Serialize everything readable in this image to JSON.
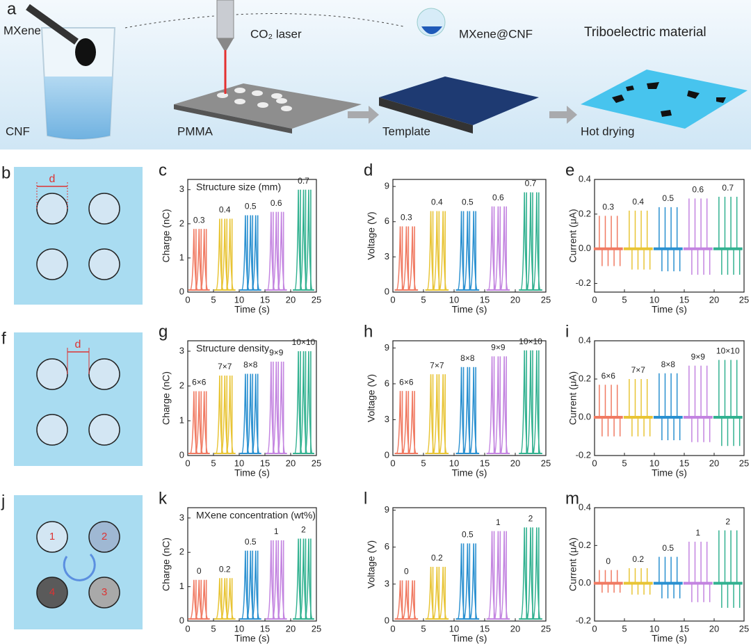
{
  "overview": {
    "panel": "a",
    "mxene": "MXene",
    "laser": "CO₂ laser",
    "composite": "MXene@CNF",
    "title": "Triboelectric material",
    "cnf": "CNF",
    "pmma": "PMMA",
    "template": "Template",
    "drying": "Hot drying"
  },
  "schematics": [
    {
      "panel": "b",
      "label": "d"
    },
    {
      "panel": "f",
      "label": "d"
    },
    {
      "panel": "j",
      "numbers": [
        "1",
        "2",
        "3",
        "4"
      ]
    }
  ],
  "chart_data": [
    {
      "type": "peaks",
      "panel": "c",
      "title": "Structure size (mm)",
      "y_label": "Charge (nC)",
      "x_label": "Time (s)",
      "xlim": [
        0,
        25
      ],
      "xticks": [
        0,
        5,
        10,
        15,
        20,
        25
      ],
      "ylim": [
        0,
        3.3
      ],
      "yticks": [
        0,
        1,
        2,
        3
      ],
      "series": [
        {
          "name": "0.3",
          "color": "#f07a62",
          "x": [
            1.2,
            2.2,
            3.2
          ],
          "values": [
            1.85,
            1.85,
            1.85
          ]
        },
        {
          "name": "0.4",
          "color": "#e8c435",
          "x": [
            6.2,
            7.2,
            8.2
          ],
          "values": [
            2.15,
            2.15,
            2.15
          ]
        },
        {
          "name": "0.5",
          "color": "#2a90d0",
          "x": [
            11.2,
            12.2,
            13.2
          ],
          "values": [
            2.25,
            2.25,
            2.25
          ]
        },
        {
          "name": "0.6",
          "color": "#c384e0",
          "x": [
            16.2,
            17.2,
            18.2
          ],
          "values": [
            2.35,
            2.35,
            2.35
          ]
        },
        {
          "name": "0.7",
          "color": "#32b190",
          "x": [
            21.5,
            22.5,
            23.5
          ],
          "values": [
            3.0,
            3.0,
            3.0
          ]
        }
      ]
    },
    {
      "type": "peaks",
      "panel": "d",
      "y_label": "Voltage (V)",
      "x_label": "Time (s)",
      "xlim": [
        0,
        25
      ],
      "xticks": [
        0,
        5,
        10,
        15,
        20,
        25
      ],
      "ylim": [
        0,
        9.6
      ],
      "yticks": [
        0,
        3,
        6,
        9
      ],
      "series": [
        {
          "name": "0.3",
          "color": "#f07a62",
          "x": [
            1.2,
            2.2,
            3.2
          ],
          "values": [
            5.6,
            5.6,
            5.6
          ]
        },
        {
          "name": "0.4",
          "color": "#e8c435",
          "x": [
            6.2,
            7.2,
            8.2
          ],
          "values": [
            6.9,
            6.9,
            6.9
          ]
        },
        {
          "name": "0.5",
          "color": "#2a90d0",
          "x": [
            11.2,
            12.2,
            13.2
          ],
          "values": [
            6.9,
            6.9,
            6.9
          ]
        },
        {
          "name": "0.6",
          "color": "#c384e0",
          "x": [
            16.2,
            17.2,
            18.2
          ],
          "values": [
            7.3,
            7.3,
            7.3
          ]
        },
        {
          "name": "0.7",
          "color": "#32b190",
          "x": [
            21.5,
            22.5,
            23.5
          ],
          "values": [
            8.5,
            8.5,
            8.5
          ]
        }
      ]
    },
    {
      "type": "spikes",
      "panel": "e",
      "y_label": "Current (μA)",
      "x_label": "Time (s)",
      "xlim": [
        0,
        25
      ],
      "xticks": [
        0,
        5,
        10,
        15,
        20,
        25
      ],
      "ylim": [
        -0.25,
        0.4
      ],
      "yticks": [
        -0.2,
        {
          "value": 0,
          "label": "0.0"
        },
        0.2,
        0.4
      ],
      "series": [
        {
          "name": "0.3",
          "color": "#f07a62",
          "x": [
            0.8,
            1.8,
            2.8,
            3.8
          ],
          "values": [
            0.19,
            0.19,
            0.19,
            0.19
          ],
          "troughs": [
            -0.1,
            -0.1,
            -0.1,
            -0.1
          ]
        },
        {
          "name": "0.4",
          "color": "#e8c435",
          "x": [
            5.8,
            6.8,
            7.8,
            8.8
          ],
          "values": [
            0.22,
            0.22,
            0.22,
            0.22
          ],
          "troughs": [
            -0.12,
            -0.12,
            -0.12,
            -0.12
          ]
        },
        {
          "name": "0.5",
          "color": "#2a90d0",
          "x": [
            10.8,
            11.8,
            12.8,
            13.8
          ],
          "values": [
            0.24,
            0.24,
            0.24,
            0.24
          ],
          "troughs": [
            -0.13,
            -0.13,
            -0.13,
            -0.13
          ]
        },
        {
          "name": "0.6",
          "color": "#c384e0",
          "x": [
            15.8,
            16.8,
            17.8,
            18.8
          ],
          "values": [
            0.29,
            0.29,
            0.29,
            0.29
          ],
          "troughs": [
            -0.15,
            -0.15,
            -0.15,
            -0.15
          ]
        },
        {
          "name": "0.7",
          "color": "#32b190",
          "x": [
            20.8,
            21.8,
            22.8,
            23.8
          ],
          "values": [
            0.3,
            0.3,
            0.3,
            0.3
          ],
          "troughs": [
            -0.15,
            -0.15,
            -0.15,
            -0.15
          ]
        }
      ]
    },
    {
      "type": "peaks",
      "panel": "g",
      "title": "Structure density",
      "y_label": "Charge (nC)",
      "x_label": "Time (s)",
      "xlim": [
        0,
        25
      ],
      "xticks": [
        0,
        5,
        10,
        15,
        20,
        25
      ],
      "ylim": [
        0,
        3.3
      ],
      "yticks": [
        0,
        1,
        2,
        3
      ],
      "series": [
        {
          "name": "6×6",
          "color": "#f07a62",
          "x": [
            1.2,
            2.2,
            3.2
          ],
          "values": [
            1.85,
            1.85,
            1.85
          ]
        },
        {
          "name": "7×7",
          "color": "#e8c435",
          "x": [
            6.2,
            7.2,
            8.2
          ],
          "values": [
            2.3,
            2.3,
            2.3
          ]
        },
        {
          "name": "8×8",
          "color": "#2a90d0",
          "x": [
            11.2,
            12.2,
            13.2
          ],
          "values": [
            2.35,
            2.35,
            2.35
          ]
        },
        {
          "name": "9×9",
          "color": "#c384e0",
          "x": [
            16.2,
            17.2,
            18.2
          ],
          "values": [
            2.7,
            2.7,
            2.7
          ]
        },
        {
          "name": "10×10",
          "color": "#32b190",
          "x": [
            21.5,
            22.5,
            23.5
          ],
          "values": [
            3.0,
            3.0,
            3.0
          ]
        }
      ]
    },
    {
      "type": "peaks",
      "panel": "h",
      "y_label": "Voltage (V)",
      "x_label": "Time (s)",
      "xlim": [
        0,
        25
      ],
      "xticks": [
        0,
        5,
        10,
        15,
        20,
        25
      ],
      "ylim": [
        0,
        9.6
      ],
      "yticks": [
        0,
        3,
        6,
        9
      ],
      "series": [
        {
          "name": "6×6",
          "color": "#f07a62",
          "x": [
            1.2,
            2.2,
            3.2
          ],
          "values": [
            5.4,
            5.4,
            5.4
          ]
        },
        {
          "name": "7×7",
          "color": "#e8c435",
          "x": [
            6.2,
            7.2,
            8.2
          ],
          "values": [
            6.8,
            6.8,
            6.8
          ]
        },
        {
          "name": "8×8",
          "color": "#2a90d0",
          "x": [
            11.2,
            12.2,
            13.2
          ],
          "values": [
            7.4,
            7.4,
            7.4
          ]
        },
        {
          "name": "9×9",
          "color": "#c384e0",
          "x": [
            16.2,
            17.2,
            18.2
          ],
          "values": [
            8.3,
            8.3,
            8.3
          ]
        },
        {
          "name": "10×10",
          "color": "#32b190",
          "x": [
            21.5,
            22.5,
            23.5
          ],
          "values": [
            8.8,
            8.8,
            8.8
          ]
        }
      ]
    },
    {
      "type": "spikes",
      "panel": "i",
      "y_label": "Current (μA)",
      "x_label": "Time (s)",
      "xlim": [
        0,
        25
      ],
      "xticks": [
        0,
        5,
        10,
        15,
        20,
        25
      ],
      "ylim": [
        -0.2,
        0.4
      ],
      "yticks": [
        -0.2,
        {
          "value": 0,
          "label": "0.0"
        },
        0.2,
        0.4
      ],
      "series": [
        {
          "name": "6×6",
          "color": "#f07a62",
          "x": [
            0.8,
            1.8,
            2.8,
            3.8
          ],
          "values": [
            0.17,
            0.17,
            0.17,
            0.17
          ],
          "troughs": [
            -0.1,
            -0.1,
            -0.1,
            -0.1
          ]
        },
        {
          "name": "7×7",
          "color": "#e8c435",
          "x": [
            5.8,
            6.8,
            7.8,
            8.8
          ],
          "values": [
            0.2,
            0.2,
            0.2,
            0.2
          ],
          "troughs": [
            -0.1,
            -0.1,
            -0.1,
            -0.1
          ]
        },
        {
          "name": "8×8",
          "color": "#2a90d0",
          "x": [
            10.8,
            11.8,
            12.8,
            13.8
          ],
          "values": [
            0.23,
            0.23,
            0.23,
            0.23
          ],
          "troughs": [
            -0.12,
            -0.12,
            -0.12,
            -0.12
          ]
        },
        {
          "name": "9×9",
          "color": "#c384e0",
          "x": [
            15.8,
            16.8,
            17.8,
            18.8
          ],
          "values": [
            0.27,
            0.27,
            0.27,
            0.27
          ],
          "troughs": [
            -0.13,
            -0.13,
            -0.13,
            -0.13
          ]
        },
        {
          "name": "10×10",
          "color": "#32b190",
          "x": [
            20.8,
            21.8,
            22.8,
            23.8
          ],
          "values": [
            0.3,
            0.3,
            0.3,
            0.3
          ],
          "troughs": [
            -0.15,
            -0.15,
            -0.15,
            -0.15
          ]
        }
      ]
    },
    {
      "type": "peaks",
      "panel": "k",
      "title": "MXene concentration (wt%)",
      "y_label": "Charge (nC)",
      "x_label": "Time (s)",
      "xlim": [
        0,
        25
      ],
      "xticks": [
        0,
        5,
        10,
        15,
        20,
        25
      ],
      "ylim": [
        0,
        3.3
      ],
      "yticks": [
        0,
        1,
        2,
        3
      ],
      "series": [
        {
          "name": "0",
          "color": "#f07a62",
          "x": [
            1.2,
            2.2,
            3.2
          ],
          "values": [
            1.2,
            1.2,
            1.2
          ]
        },
        {
          "name": "0.2",
          "color": "#e8c435",
          "x": [
            6.2,
            7.2,
            8.2
          ],
          "values": [
            1.25,
            1.25,
            1.25
          ]
        },
        {
          "name": "0.5",
          "color": "#2a90d0",
          "x": [
            11.2,
            12.2,
            13.2
          ],
          "values": [
            2.05,
            2.05,
            2.05
          ]
        },
        {
          "name": "1",
          "color": "#c384e0",
          "x": [
            16.2,
            17.2,
            18.2
          ],
          "values": [
            2.35,
            2.35,
            2.35
          ]
        },
        {
          "name": "2",
          "color": "#32b190",
          "x": [
            21.5,
            22.5,
            23.5
          ],
          "values": [
            2.4,
            2.4,
            2.4
          ]
        }
      ]
    },
    {
      "type": "peaks",
      "panel": "l",
      "y_label": "Voltage (V)",
      "x_label": "Time (s)",
      "xlim": [
        0,
        25
      ],
      "xticks": [
        0,
        5,
        10,
        15,
        20,
        25
      ],
      "ylim": [
        0,
        9.2
      ],
      "yticks": [
        0,
        3,
        6,
        9
      ],
      "series": [
        {
          "name": "0",
          "color": "#f07a62",
          "x": [
            1.2,
            2.2,
            3.2
          ],
          "values": [
            3.3,
            3.3,
            3.3
          ]
        },
        {
          "name": "0.2",
          "color": "#e8c435",
          "x": [
            6.2,
            7.2,
            8.2
          ],
          "values": [
            4.4,
            4.4,
            4.4
          ]
        },
        {
          "name": "0.5",
          "color": "#2a90d0",
          "x": [
            11.2,
            12.2,
            13.2
          ],
          "values": [
            6.3,
            6.3,
            6.3
          ]
        },
        {
          "name": "1",
          "color": "#c384e0",
          "x": [
            16.2,
            17.2,
            18.2
          ],
          "values": [
            7.3,
            7.3,
            7.3
          ]
        },
        {
          "name": "2",
          "color": "#32b190",
          "x": [
            21.5,
            22.5,
            23.5
          ],
          "values": [
            7.6,
            7.6,
            7.6
          ]
        }
      ]
    },
    {
      "type": "spikes",
      "panel": "m",
      "y_label": "Current (μA)",
      "x_label": "Time (s)",
      "xlim": [
        0,
        25
      ],
      "xticks": [
        0,
        5,
        10,
        15,
        20,
        25
      ],
      "ylim": [
        -0.2,
        0.4
      ],
      "yticks": [
        -0.2,
        {
          "value": 0,
          "label": "0.0"
        },
        0.2,
        0.4
      ],
      "series": [
        {
          "name": "0",
          "color": "#f07a62",
          "x": [
            0.8,
            1.8,
            2.8,
            3.8
          ],
          "values": [
            0.07,
            0.07,
            0.07,
            0.07
          ],
          "troughs": [
            -0.05,
            -0.05,
            -0.05,
            -0.05
          ]
        },
        {
          "name": "0.2",
          "color": "#e8c435",
          "x": [
            5.8,
            6.8,
            7.8,
            8.8
          ],
          "values": [
            0.08,
            0.08,
            0.08,
            0.08
          ],
          "troughs": [
            -0.06,
            -0.06,
            -0.06,
            -0.06
          ]
        },
        {
          "name": "0.5",
          "color": "#2a90d0",
          "x": [
            10.8,
            11.8,
            12.8,
            13.8
          ],
          "values": [
            0.14,
            0.14,
            0.14,
            0.14
          ],
          "troughs": [
            -0.08,
            -0.08,
            -0.08,
            -0.08
          ]
        },
        {
          "name": "1",
          "color": "#c384e0",
          "x": [
            15.8,
            16.8,
            17.8,
            18.8
          ],
          "values": [
            0.22,
            0.22,
            0.22,
            0.22
          ],
          "troughs": [
            -0.1,
            -0.1,
            -0.1,
            -0.1
          ]
        },
        {
          "name": "2",
          "color": "#32b190",
          "x": [
            20.8,
            21.8,
            22.8,
            23.8
          ],
          "values": [
            0.28,
            0.28,
            0.28,
            0.28
          ],
          "troughs": [
            -0.13,
            -0.13,
            -0.13,
            -0.13
          ]
        }
      ]
    }
  ]
}
